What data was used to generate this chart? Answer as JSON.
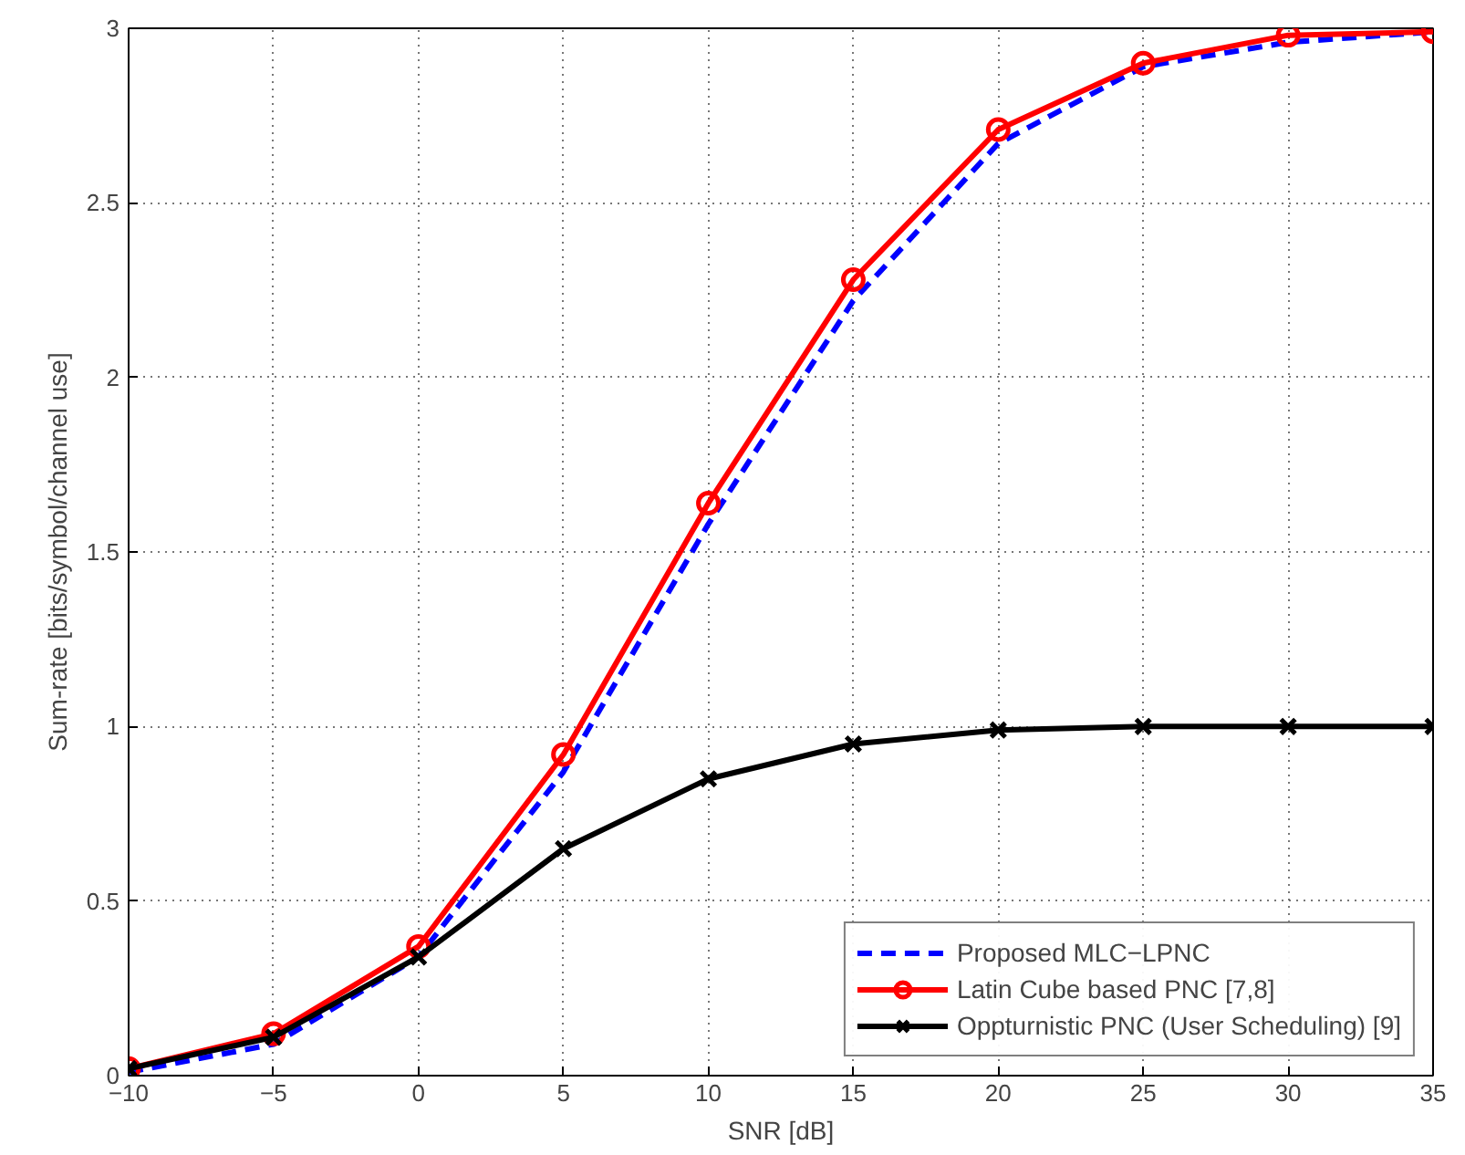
{
  "chart_data": {
    "type": "line",
    "xlabel": "SNR [dB]",
    "ylabel": "Sum-rate [bits/symbol/channel use]",
    "x": [
      -10,
      -5,
      0,
      5,
      10,
      15,
      20,
      25,
      30,
      35
    ],
    "xlim": [
      -10,
      35
    ],
    "xticks": [
      -10,
      -5,
      0,
      5,
      10,
      15,
      20,
      25,
      30,
      35
    ],
    "ylim": [
      0,
      3
    ],
    "yticks": [
      0,
      0.5,
      1,
      1.5,
      2,
      2.5,
      3
    ],
    "grid": true,
    "legend": "bottom right",
    "series": [
      {
        "name": "Proposed MLC−LPNC",
        "color": "#0000ff",
        "line_style": "dashed",
        "marker": "none",
        "values": [
          0.01,
          0.09,
          0.34,
          0.87,
          1.58,
          2.22,
          2.67,
          2.89,
          2.96,
          2.99
        ]
      },
      {
        "name": "Latin Cube based PNC [7,8]",
        "color": "#ff0000",
        "line_style": "solid",
        "marker": "circle",
        "values": [
          0.02,
          0.12,
          0.37,
          0.92,
          1.64,
          2.28,
          2.71,
          2.9,
          2.98,
          2.99
        ]
      },
      {
        "name": "Oppturnistic PNC (User Scheduling) [9]",
        "color": "#000000",
        "line_style": "solid",
        "marker": "cross",
        "values": [
          0.02,
          0.11,
          0.34,
          0.65,
          0.85,
          0.95,
          0.99,
          1.0,
          1.0,
          1.0
        ]
      }
    ]
  }
}
